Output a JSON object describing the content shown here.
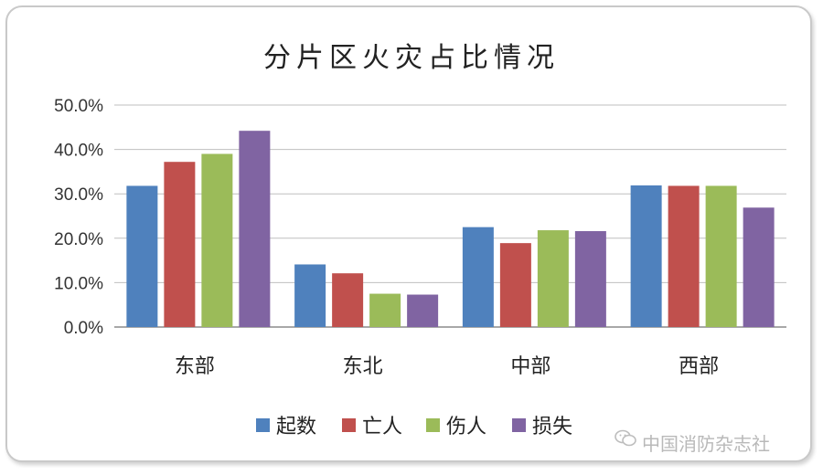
{
  "chart_data": {
    "type": "bar",
    "title": "分片区火灾占比情况",
    "categories": [
      "东部",
      "东北",
      "中部",
      "西部"
    ],
    "series": [
      {
        "name": "起数",
        "color": "#4f81bd",
        "values": [
          31.8,
          14.1,
          22.5,
          31.9
        ]
      },
      {
        "name": "亡人",
        "color": "#c0504d",
        "values": [
          37.2,
          12.1,
          18.9,
          31.8
        ]
      },
      {
        "name": "伤人",
        "color": "#9bbb59",
        "values": [
          39.0,
          7.5,
          21.8,
          31.8
        ]
      },
      {
        "name": "损失",
        "color": "#8064a2",
        "values": [
          44.2,
          7.3,
          21.6,
          26.9
        ]
      }
    ],
    "ylim": [
      0,
      50
    ],
    "yticks": [
      "0.0%",
      "10.0%",
      "20.0%",
      "30.0%",
      "40.0%",
      "50.0%"
    ],
    "grid": true,
    "legend_position": "bottom"
  },
  "watermark": {
    "icon": "wechat-icon",
    "text": "中国消防杂志社"
  }
}
